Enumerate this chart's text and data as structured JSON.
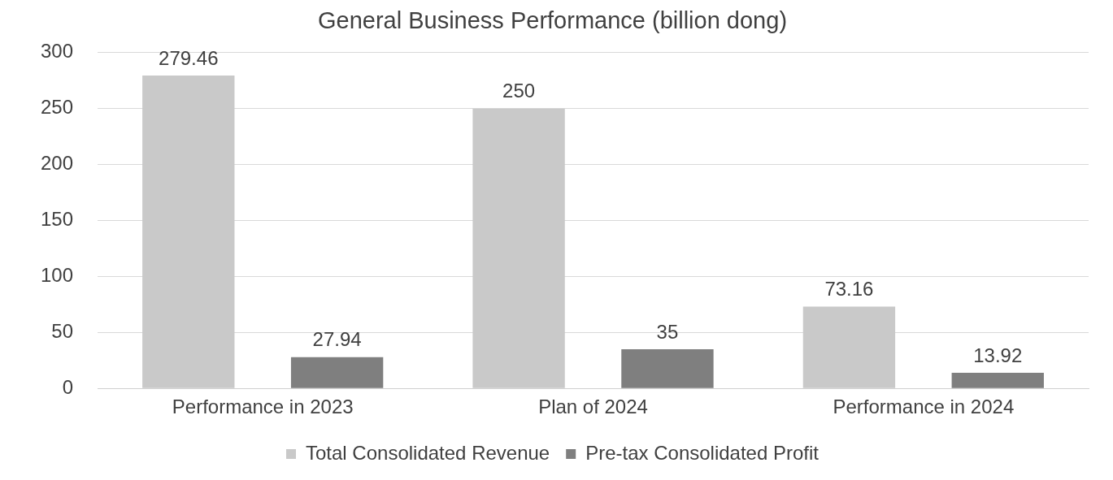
{
  "chart_data": {
    "type": "bar",
    "title": "General Business Performance (billion dong)",
    "categories": [
      "Performance in 2023",
      "Plan of 2024",
      "Performance in 2024"
    ],
    "series": [
      {
        "name": "Total Consolidated Revenue",
        "color": "#c9c9c9",
        "values": [
          279.46,
          250,
          73.16
        ]
      },
      {
        "name": "Pre-tax Consolidated Profit",
        "color": "#7f7f7f",
        "values": [
          27.94,
          35,
          13.92
        ]
      }
    ],
    "ylim": [
      0,
      300
    ],
    "yticks": [
      0,
      50,
      100,
      150,
      200,
      250,
      300
    ],
    "grid": "y",
    "legend": "bottom",
    "data_labels": true
  }
}
